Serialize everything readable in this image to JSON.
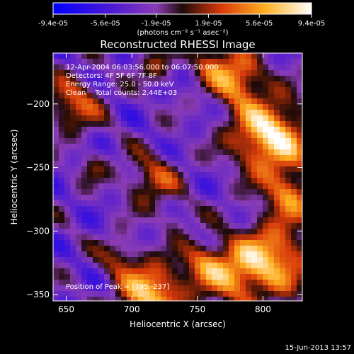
{
  "chart_data": {
    "type": "heatmap",
    "title": "Reconstructed RHESSI Image",
    "xlabel": "Heliocentric X (arcsec)",
    "ylabel": "Heliocentric Y (arcsec)",
    "xlim": [
      640,
      830
    ],
    "ylim": [
      -355,
      -160
    ],
    "x_ticks": [
      650,
      700,
      750,
      800
    ],
    "y_ticks": [
      -200,
      -250,
      -300,
      -350
    ],
    "colorbar": {
      "unit_label": "(photons cm⁻² s⁻¹ asec⁻²)",
      "ticks": [
        "-9.4e-05",
        "-5.6e-05",
        "-1.9e-05",
        "1.9e-05",
        "5.6e-05",
        "9.4e-05"
      ],
      "min": -9.4e-05,
      "max": 9.4e-05
    },
    "info_lines": [
      "12-Apr-2004 06:03:56.000 to 06:07:50.000",
      "Detectors: 4F 5F 6F 7F 8F",
      "Energy Range: 25.0 - 50.0 keV",
      "Clean    Total counts: 2.44E+03"
    ],
    "peak_text": "Position of Peak = [795,-237]",
    "peak": {
      "x": 795,
      "y": -237
    },
    "sources": [
      {
        "x": 805,
        "y": -225,
        "sigma": 20,
        "amp": 1.0
      },
      {
        "x": 780,
        "y": -180,
        "sigma": 14,
        "amp": 0.75
      },
      {
        "x": 820,
        "y": -270,
        "sigma": 14,
        "amp": 0.6
      },
      {
        "x": 810,
        "y": -320,
        "sigma": 20,
        "amp": 0.7
      },
      {
        "x": 780,
        "y": -335,
        "sigma": 18,
        "amp": 0.6
      },
      {
        "x": 755,
        "y": -325,
        "sigma": 12,
        "amp": 0.45
      },
      {
        "x": 715,
        "y": -350,
        "sigma": 18,
        "amp": 0.85
      },
      {
        "x": 690,
        "y": -320,
        "sigma": 10,
        "amp": 0.35
      },
      {
        "x": 655,
        "y": -200,
        "sigma": 15,
        "amp": 0.55
      },
      {
        "x": 715,
        "y": -260,
        "sigma": 14,
        "amp": 0.5
      },
      {
        "x": 720,
        "y": -170,
        "sigma": 10,
        "amp": 0.35
      },
      {
        "x": 760,
        "y": -165,
        "sigma": 10,
        "amp": 0.4
      },
      {
        "x": 670,
        "y": -250,
        "sigma": 8,
        "amp": 0.3
      },
      {
        "x": 735,
        "y": -290,
        "sigma": 8,
        "amp": 0.25
      }
    ]
  },
  "timestamp": "15-Jun-2013 13:57"
}
